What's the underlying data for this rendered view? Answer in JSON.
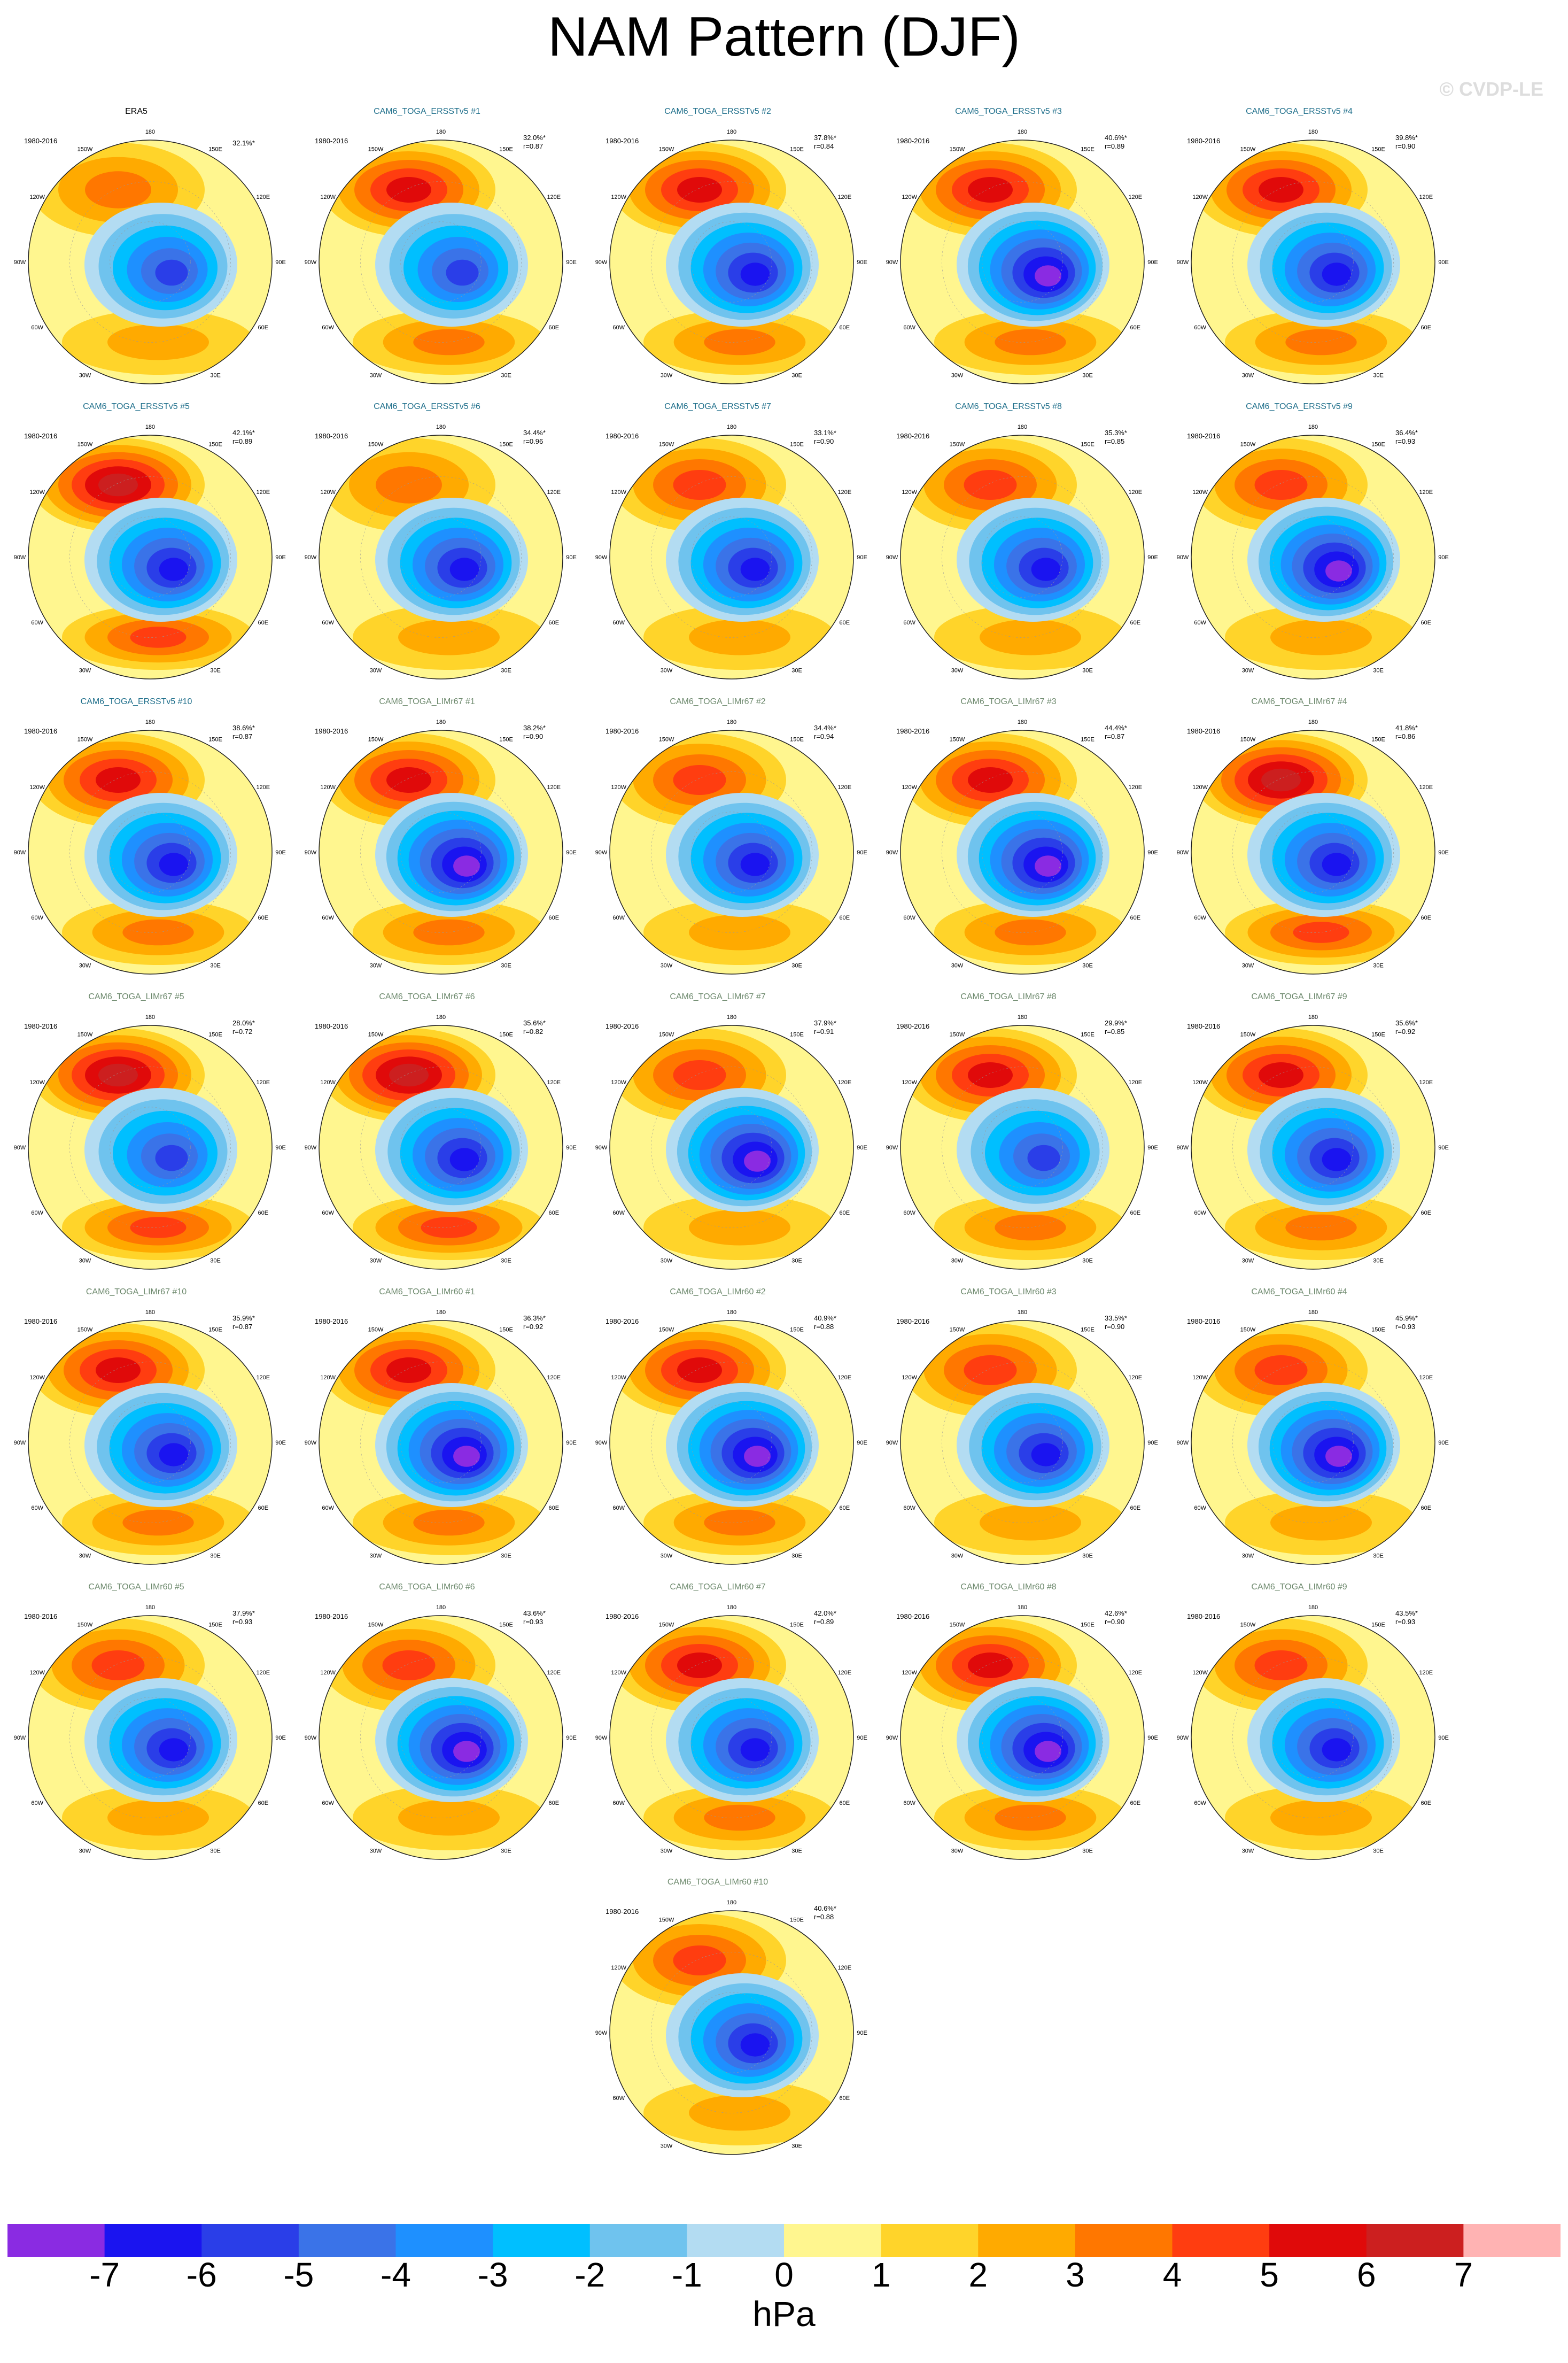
{
  "title": "NAM Pattern (DJF)",
  "copyright": "© CVDP-LE",
  "colorbar": {
    "units": "hPa",
    "ticks": [
      "-7",
      "-6",
      "-5",
      "-4",
      "-3",
      "-2",
      "-1",
      "0",
      "1",
      "2",
      "3",
      "4",
      "5",
      "6",
      "7"
    ],
    "colors": [
      "#8a2be2",
      "#1a14f0",
      "#2a3ee8",
      "#3a73e8",
      "#1e90ff",
      "#00bfff",
      "#6fc3ee",
      "#b3dcf2",
      "#fff68f",
      "#ffd42a",
      "#ffaa00",
      "#ff7700",
      "#ff3d10",
      "#e00a0a",
      "#cc1f1f",
      "#ffb3b3"
    ]
  },
  "map_labels": {
    "top": "180",
    "bottom": "0",
    "left": "90W",
    "right": "90E",
    "ul_outer": "120W",
    "ul_inner": "150W",
    "ur_inner": "150E",
    "ur_outer": "120E",
    "ll_outer": "60W",
    "ll_inner": "30W",
    "lr_inner": "30E",
    "lr_outer": "60E"
  },
  "chart_data": {
    "type": "heatmap",
    "variable": "NAM Pattern (DJF)",
    "units": "hPa",
    "color_range": [
      -7,
      7
    ],
    "panels": [
      {
        "name": "ERA5",
        "period": "1980-2016",
        "pct": "32.1%*",
        "r": "",
        "group": "obs",
        "min": -5,
        "max": 3
      },
      {
        "name": "CAM6_TOGA_ERSSTv5 #1",
        "period": "1980-2016",
        "pct": "32.0%*",
        "r": "r=0.87",
        "group": "ersst",
        "min": -5,
        "max": 5
      },
      {
        "name": "CAM6_TOGA_ERSSTv5 #2",
        "period": "1980-2016",
        "pct": "37.8%*",
        "r": "r=0.84",
        "group": "ersst",
        "min": -6,
        "max": 5
      },
      {
        "name": "CAM6_TOGA_ERSSTv5 #3",
        "period": "1980-2016",
        "pct": "40.6%*",
        "r": "r=0.89",
        "group": "ersst",
        "min": -7,
        "max": 5
      },
      {
        "name": "CAM6_TOGA_ERSSTv5 #4",
        "period": "1980-2016",
        "pct": "39.8%*",
        "r": "r=0.90",
        "group": "ersst",
        "min": -6,
        "max": 5
      },
      {
        "name": "CAM6_TOGA_ERSSTv5 #5",
        "period": "1980-2016",
        "pct": "42.1%*",
        "r": "r=0.89",
        "group": "ersst",
        "min": -6,
        "max": 6
      },
      {
        "name": "CAM6_TOGA_ERSSTv5 #6",
        "period": "1980-2016",
        "pct": "34.4%*",
        "r": "r=0.96",
        "group": "ersst",
        "min": -6,
        "max": 3
      },
      {
        "name": "CAM6_TOGA_ERSSTv5 #7",
        "period": "1980-2016",
        "pct": "33.1%*",
        "r": "r=0.90",
        "group": "ersst",
        "min": -6,
        "max": 4
      },
      {
        "name": "CAM6_TOGA_ERSSTv5 #8",
        "period": "1980-2016",
        "pct": "35.3%*",
        "r": "r=0.85",
        "group": "ersst",
        "min": -6,
        "max": 4
      },
      {
        "name": "CAM6_TOGA_ERSSTv5 #9",
        "period": "1980-2016",
        "pct": "36.4%*",
        "r": "r=0.93",
        "group": "ersst",
        "min": -7,
        "max": 4
      },
      {
        "name": "CAM6_TOGA_ERSSTv5 #10",
        "period": "1980-2016",
        "pct": "38.6%*",
        "r": "r=0.87",
        "group": "ersst",
        "min": -6,
        "max": 5
      },
      {
        "name": "CAM6_TOGA_LIMr67 #1",
        "period": "1980-2016",
        "pct": "38.2%*",
        "r": "r=0.90",
        "group": "lim",
        "min": -7,
        "max": 5
      },
      {
        "name": "CAM6_TOGA_LIMr67 #2",
        "period": "1980-2016",
        "pct": "34.4%*",
        "r": "r=0.94",
        "group": "lim",
        "min": -6,
        "max": 4
      },
      {
        "name": "CAM6_TOGA_LIMr67 #3",
        "period": "1980-2016",
        "pct": "44.4%*",
        "r": "r=0.87",
        "group": "lim",
        "min": -7,
        "max": 5
      },
      {
        "name": "CAM6_TOGA_LIMr67 #4",
        "period": "1980-2016",
        "pct": "41.8%*",
        "r": "r=0.86",
        "group": "lim",
        "min": -6,
        "max": 6
      },
      {
        "name": "CAM6_TOGA_LIMr67 #5",
        "period": "1980-2016",
        "pct": "28.0%*",
        "r": "r=0.72",
        "group": "lim",
        "min": -5,
        "max": 6
      },
      {
        "name": "CAM6_TOGA_LIMr67 #6",
        "period": "1980-2016",
        "pct": "35.6%*",
        "r": "r=0.82",
        "group": "lim",
        "min": -6,
        "max": 6
      },
      {
        "name": "CAM6_TOGA_LIMr67 #7",
        "period": "1980-2016",
        "pct": "37.9%*",
        "r": "r=0.91",
        "group": "lim",
        "min": -7,
        "max": 4
      },
      {
        "name": "CAM6_TOGA_LIMr67 #8",
        "period": "1980-2016",
        "pct": "29.9%*",
        "r": "r=0.85",
        "group": "lim",
        "min": -5,
        "max": 5
      },
      {
        "name": "CAM6_TOGA_LIMr67 #9",
        "period": "1980-2016",
        "pct": "35.6%*",
        "r": "r=0.92",
        "group": "lim",
        "min": -6,
        "max": 5
      },
      {
        "name": "CAM6_TOGA_LIMr67 #10",
        "period": "1980-2016",
        "pct": "35.9%*",
        "r": "r=0.87",
        "group": "lim",
        "min": -6,
        "max": 5
      },
      {
        "name": "CAM6_TOGA_LIMr60 #1",
        "period": "1980-2016",
        "pct": "36.3%*",
        "r": "r=0.92",
        "group": "lim",
        "min": -7,
        "max": 5
      },
      {
        "name": "CAM6_TOGA_LIMr60 #2",
        "period": "1980-2016",
        "pct": "40.9%*",
        "r": "r=0.88",
        "group": "lim",
        "min": -7,
        "max": 5
      },
      {
        "name": "CAM6_TOGA_LIMr60 #3",
        "period": "1980-2016",
        "pct": "33.5%*",
        "r": "r=0.90",
        "group": "lim",
        "min": -6,
        "max": 4
      },
      {
        "name": "CAM6_TOGA_LIMr60 #4",
        "period": "1980-2016",
        "pct": "45.9%*",
        "r": "r=0.93",
        "group": "lim",
        "min": -7,
        "max": 4
      },
      {
        "name": "CAM6_TOGA_LIMr60 #5",
        "period": "1980-2016",
        "pct": "37.9%*",
        "r": "r=0.93",
        "group": "lim",
        "min": -6,
        "max": 4
      },
      {
        "name": "CAM6_TOGA_LIMr60 #6",
        "period": "1980-2016",
        "pct": "43.6%*",
        "r": "r=0.93",
        "group": "lim",
        "min": -7,
        "max": 4
      },
      {
        "name": "CAM6_TOGA_LIMr60 #7",
        "period": "1980-2016",
        "pct": "42.0%*",
        "r": "r=0.89",
        "group": "lim",
        "min": -6,
        "max": 5
      },
      {
        "name": "CAM6_TOGA_LIMr60 #8",
        "period": "1980-2016",
        "pct": "42.6%*",
        "r": "r=0.90",
        "group": "lim",
        "min": -7,
        "max": 5
      },
      {
        "name": "CAM6_TOGA_LIMr60 #9",
        "period": "1980-2016",
        "pct": "43.5%*",
        "r": "r=0.93",
        "group": "lim",
        "min": -6,
        "max": 4
      },
      {
        "name": "CAM6_TOGA_LIMr60 #10",
        "period": "1980-2016",
        "pct": "40.6%*",
        "r": "r=0.88",
        "group": "lim",
        "min": -6,
        "max": 4
      }
    ]
  }
}
